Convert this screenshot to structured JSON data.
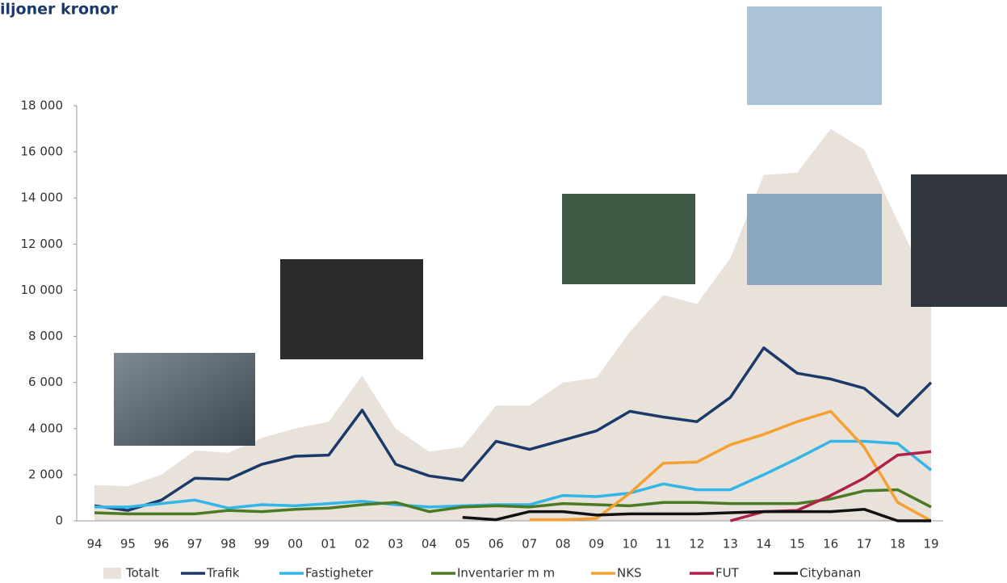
{
  "chart_data": {
    "type": "line",
    "title": "iljoner kronor",
    "categories": [
      "94",
      "95",
      "96",
      "97",
      "98",
      "99",
      "00",
      "01",
      "02",
      "03",
      "04",
      "05",
      "06",
      "07",
      "08",
      "09",
      "10",
      "11",
      "12",
      "13",
      "14",
      "15",
      "16",
      "17",
      "18",
      "19"
    ],
    "ylim": [
      0,
      18000
    ],
    "yticks": [
      0,
      {
        "value": 2000,
        "label": "2 000"
      },
      {
        "value": 4000,
        "label": "4 000"
      },
      {
        "value": 6000,
        "label": "6 000"
      },
      {
        "value": 8000,
        "label": "8 000"
      },
      {
        "value": 10000,
        "label": "10 000"
      },
      {
        "value": 12000,
        "label": "12 000"
      },
      {
        "value": 14000,
        "label": "14 000"
      },
      {
        "value": 16000,
        "label": "16 000"
      },
      {
        "value": 18000,
        "label": "18 000"
      }
    ],
    "legend": "bottom",
    "series": [
      {
        "name": "Totalt",
        "color": "#e9e2da",
        "style": "area",
        "values": [
          1550,
          1500,
          2000,
          3050,
          2950,
          3600,
          4000,
          4300,
          6300,
          4000,
          3000,
          3200,
          5000,
          5000,
          6000,
          6200,
          8200,
          9800,
          9400,
          11400,
          15000,
          15100,
          17000,
          16100,
          13000,
          10000
        ]
      },
      {
        "name": "Trafik",
        "color": "#1b3a6b",
        "values": [
          650,
          450,
          900,
          1850,
          1800,
          2450,
          2800,
          2850,
          4800,
          2450,
          1950,
          1750,
          3450,
          3100,
          3500,
          3900,
          4750,
          4500,
          4300,
          5350,
          7500,
          6400,
          6150,
          5750,
          4550,
          6000
        ]
      },
      {
        "name": "Fastigheter",
        "color": "#33b5e8",
        "values": [
          600,
          600,
          750,
          900,
          550,
          700,
          650,
          750,
          850,
          700,
          600,
          650,
          700,
          700,
          1100,
          1050,
          1200,
          1600,
          1350,
          1350,
          2000,
          2700,
          3450,
          3450,
          3350,
          2200
        ]
      },
      {
        "name": "Inventarier m m",
        "color": "#4a7a23",
        "values": [
          350,
          300,
          300,
          300,
          450,
          400,
          500,
          550,
          700,
          800,
          400,
          600,
          650,
          600,
          750,
          700,
          650,
          800,
          800,
          750,
          750,
          750,
          950,
          1300,
          1350,
          600
        ]
      },
      {
        "name": "NKS",
        "color": "#f5a032",
        "values": [
          null,
          null,
          null,
          null,
          null,
          null,
          null,
          null,
          null,
          null,
          null,
          null,
          null,
          50,
          50,
          100,
          1200,
          2500,
          2550,
          3300,
          3750,
          4300,
          4750,
          3200,
          800,
          0
        ]
      },
      {
        "name": "FUT",
        "color": "#b0204a",
        "values": [
          null,
          null,
          null,
          null,
          null,
          null,
          null,
          null,
          null,
          null,
          null,
          null,
          null,
          null,
          null,
          null,
          null,
          null,
          null,
          0,
          400,
          450,
          1100,
          1850,
          2850,
          3000
        ]
      },
      {
        "name": "Citybanan",
        "color": "#111111",
        "values": [
          null,
          null,
          null,
          null,
          null,
          null,
          null,
          null,
          null,
          null,
          null,
          150,
          50,
          400,
          400,
          250,
          300,
          300,
          300,
          350,
          400,
          400,
          400,
          500,
          0,
          0
        ]
      }
    ]
  }
}
